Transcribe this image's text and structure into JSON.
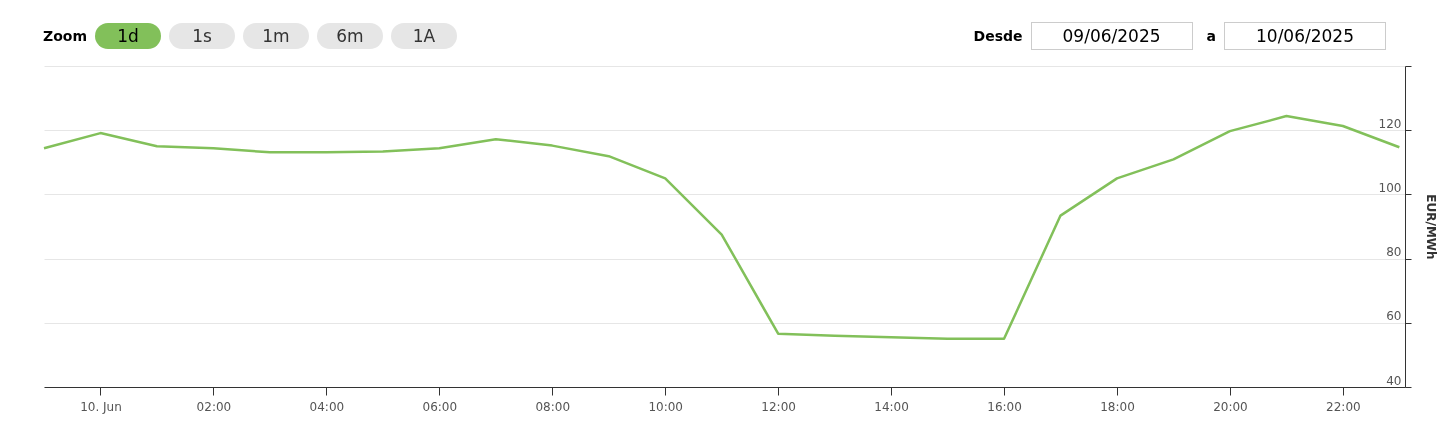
{
  "chart_data": {
    "type": "line",
    "ylabel": "EUR/MWh",
    "annotations": [
      "Zoom",
      "1d",
      "1s",
      "1m",
      "6m",
      "1A",
      "Desde",
      "09/06/2025",
      "a",
      "10/06/2025"
    ],
    "x": [
      -1,
      0,
      1,
      2,
      3,
      4,
      5,
      6,
      7,
      8,
      9,
      10,
      11,
      12,
      13,
      14,
      15,
      16,
      17,
      18,
      19,
      20,
      21,
      22,
      23
    ],
    "series": [
      {
        "color": "#82c05a",
        "values": [
          114.4,
          119.1,
          115,
          114.4,
          113.1,
          113.1,
          113.4,
          114.4,
          117.2,
          115.2,
          111.9,
          105,
          87.5,
          56.6,
          56,
          55.5,
          55,
          55,
          93.4,
          105,
          110.9,
          119.7,
          124.4,
          121.3,
          114.7
        ]
      }
    ],
    "xlim": [
      -1,
      23.1
    ],
    "xticks": [
      {
        "value": 0,
        "label": "10. Jun"
      },
      {
        "value": 2,
        "label": "02:00"
      },
      {
        "value": 4,
        "label": "04:00"
      },
      {
        "value": 6,
        "label": "06:00"
      },
      {
        "value": 8,
        "label": "08:00"
      },
      {
        "value": 10,
        "label": "10:00"
      },
      {
        "value": 12,
        "label": "12:00"
      },
      {
        "value": 14,
        "label": "14:00"
      },
      {
        "value": 16,
        "label": "16:00"
      },
      {
        "value": 18,
        "label": "18:00"
      },
      {
        "value": 20,
        "label": "20:00"
      },
      {
        "value": 22,
        "label": "22:00"
      }
    ],
    "ylim": [
      40,
      140
    ],
    "yticks": [
      40,
      60,
      80,
      100,
      120,
      {
        "value": 140,
        "label": null
      }
    ],
    "grid": "y",
    "marker": "none",
    "line_style": "solid"
  }
}
